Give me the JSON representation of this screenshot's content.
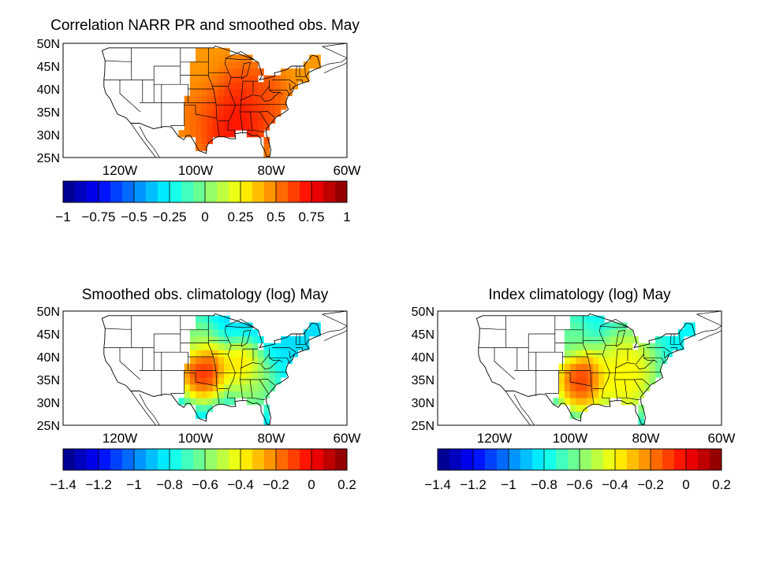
{
  "chart_data": [
    {
      "type": "heatmap",
      "title": "Correlation NARR PR and smoothed obs. May",
      "lat_tick_labels": [
        "50N",
        "45N",
        "40N",
        "35N",
        "30N",
        "25N"
      ],
      "lat_ticks": [
        50,
        45,
        40,
        35,
        30,
        25
      ],
      "lon_tick_labels": [
        "120W",
        "100W",
        "80W",
        "60W"
      ],
      "lon_ticks": [
        -120,
        -100,
        -80,
        -60
      ],
      "lon_range": [
        -135,
        -60
      ],
      "lat_range": [
        25,
        50
      ],
      "colorbar": {
        "range": [
          -1,
          1
        ],
        "tick_values": [
          -1,
          -0.75,
          -0.5,
          -0.25,
          0,
          0.25,
          0.5,
          0.75,
          1
        ],
        "tick_labels": [
          "−1",
          "−0.75",
          "−0.5",
          "−0.25",
          "0",
          "0.25",
          "0.5",
          "0.75",
          "1"
        ],
        "colormap": "jet"
      },
      "field": "correlation",
      "blobs": [
        {
          "lon": -88,
          "lat": 35,
          "r": 7,
          "v": 0.75
        },
        {
          "lon": -82,
          "lat": 39,
          "r": 4,
          "v": 0.6
        },
        {
          "lon": -97,
          "lat": 35,
          "r": 6,
          "v": 0.55
        },
        {
          "lon": -100,
          "lat": 44,
          "r": 5,
          "v": 0.45
        },
        {
          "lon": -92,
          "lat": 32,
          "r": 5,
          "v": 0.8
        }
      ],
      "base_value": 0.45
    },
    {
      "type": "heatmap",
      "title": "Smoothed obs. climatology (log) May",
      "lat_tick_labels": [
        "50N",
        "45N",
        "40N",
        "35N",
        "30N",
        "25N"
      ],
      "lat_ticks": [
        50,
        45,
        40,
        35,
        30,
        25
      ],
      "lon_tick_labels": [
        "120W",
        "100W",
        "80W",
        "60W"
      ],
      "lon_ticks": [
        -120,
        -100,
        -80,
        -60
      ],
      "lon_range": [
        -135,
        -60
      ],
      "lat_range": [
        25,
        50
      ],
      "colorbar": {
        "range": [
          -1.4,
          0.2
        ],
        "tick_values": [
          -1.4,
          -1.2,
          -1,
          -0.8,
          -0.6,
          -0.4,
          -0.2,
          0,
          0.2
        ],
        "tick_labels": [
          "−1.4",
          "−1.2",
          "−1",
          "−0.8",
          "−0.6",
          "−0.4",
          "−0.2",
          "0",
          "0.2"
        ],
        "colormap": "jet"
      },
      "field": "log_climatology",
      "blobs": [
        {
          "lon": -98,
          "lat": 37,
          "r": 5,
          "v": 0.15
        },
        {
          "lon": -88,
          "lat": 38,
          "r": 4,
          "v": -0.2
        },
        {
          "lon": -85,
          "lat": 34,
          "r": 5,
          "v": -0.5
        },
        {
          "lon": -100,
          "lat": 44,
          "r": 4,
          "v": -0.55
        }
      ],
      "base_value": -0.85
    },
    {
      "type": "heatmap",
      "title": "Index climatology (log) May",
      "lat_tick_labels": [
        "50N",
        "45N",
        "40N",
        "35N",
        "30N",
        "25N"
      ],
      "lat_ticks": [
        50,
        45,
        40,
        35,
        30,
        25
      ],
      "lon_tick_labels": [
        "120W",
        "100W",
        "80W",
        "60W"
      ],
      "lon_ticks": [
        -120,
        -100,
        -80,
        -60
      ],
      "lon_range": [
        -135,
        -60
      ],
      "lat_range": [
        25,
        50
      ],
      "colorbar": {
        "range": [
          -1.4,
          0.2
        ],
        "tick_values": [
          -1.4,
          -1.2,
          -1,
          -0.8,
          -0.6,
          -0.4,
          -0.2,
          0,
          0.2
        ],
        "tick_labels": [
          "−1.4",
          "−1.2",
          "−1",
          "−0.8",
          "−0.6",
          "−0.4",
          "−0.2",
          "0",
          "0.2"
        ],
        "colormap": "jet"
      },
      "field": "log_climatology",
      "blobs": [
        {
          "lon": -97,
          "lat": 35,
          "r": 5,
          "v": 0.1
        },
        {
          "lon": -85,
          "lat": 38,
          "r": 6,
          "v": -0.3
        },
        {
          "lon": -86,
          "lat": 33,
          "r": 5,
          "v": -0.35
        },
        {
          "lon": -100,
          "lat": 44,
          "r": 4,
          "v": -0.6
        }
      ],
      "base_value": -0.8
    }
  ]
}
